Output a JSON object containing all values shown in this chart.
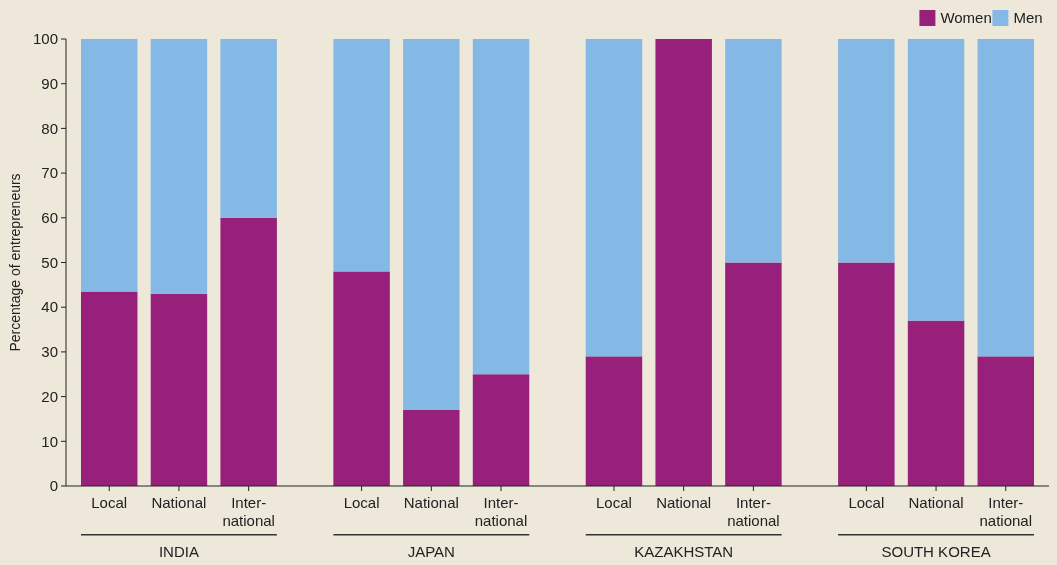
{
  "chart_data": {
    "type": "bar",
    "stacked": true,
    "ylabel": "Percentage of entrepreneurs",
    "categories": [
      "Local",
      "National",
      "Inter-\nnational",
      "Local",
      "National",
      "Inter-\nnational",
      "Local",
      "National",
      "Inter-\nnational",
      "Local",
      "National",
      "Inter-\nnational"
    ],
    "series": [
      {
        "name": "Women",
        "color": "#97207a",
        "values": [
          43.5,
          43,
          60,
          48,
          17,
          25,
          29,
          100,
          50,
          50,
          37,
          29
        ]
      },
      {
        "name": "Men",
        "color": "#85b9e5",
        "values": [
          56.5,
          57,
          40,
          52,
          83,
          75,
          71,
          0,
          50,
          50,
          63,
          71
        ]
      }
    ],
    "ylim": [
      0,
      100
    ],
    "yticks": [
      0,
      10,
      20,
      30,
      40,
      50,
      60,
      70,
      80,
      90,
      100
    ],
    "annotations": [
      "INDIA",
      "JAPAN",
      "KAZAKHSTAN",
      "SOUTH KOREA"
    ],
    "legend": "top right",
    "grid": false
  }
}
